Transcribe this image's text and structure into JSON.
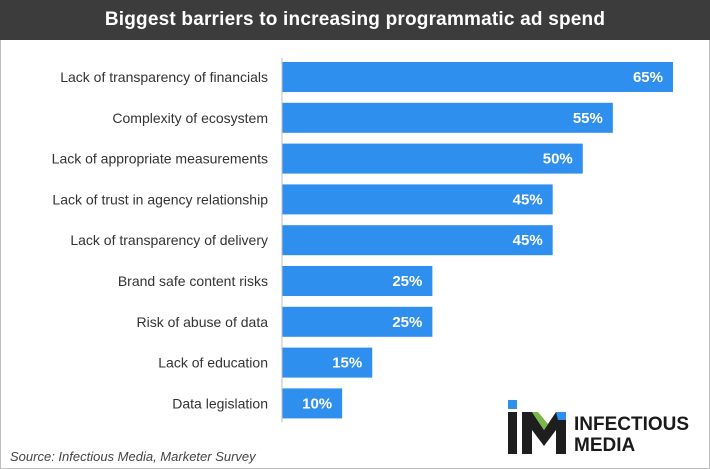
{
  "chart_data": {
    "type": "bar",
    "orientation": "horizontal",
    "title": "Biggest barriers to increasing programmatic ad spend",
    "categories": [
      "Lack of transparency of financials",
      "Complexity of ecosystem",
      "Lack of appropriate measurements",
      "Lack of trust in agency relationship",
      "Lack of transparency of delivery",
      "Brand safe content risks",
      "Risk of abuse of data",
      "Lack of education",
      "Data legislation"
    ],
    "values": [
      65,
      55,
      50,
      45,
      45,
      25,
      25,
      15,
      10
    ],
    "value_labels": [
      "65%",
      "55%",
      "50%",
      "45%",
      "45%",
      "25%",
      "25%",
      "15%",
      "10%"
    ],
    "xlim": [
      0,
      65
    ],
    "grid": false,
    "bar_color": "#2e8fee"
  },
  "source": "Source: Infectious Media, Marketer Survey",
  "logo": {
    "line1": "INFECTIOUS",
    "line2": "MEDIA",
    "colors": {
      "dark": "#1e1e1e",
      "blue": "#2e8fee",
      "green": "#7ab648"
    }
  }
}
